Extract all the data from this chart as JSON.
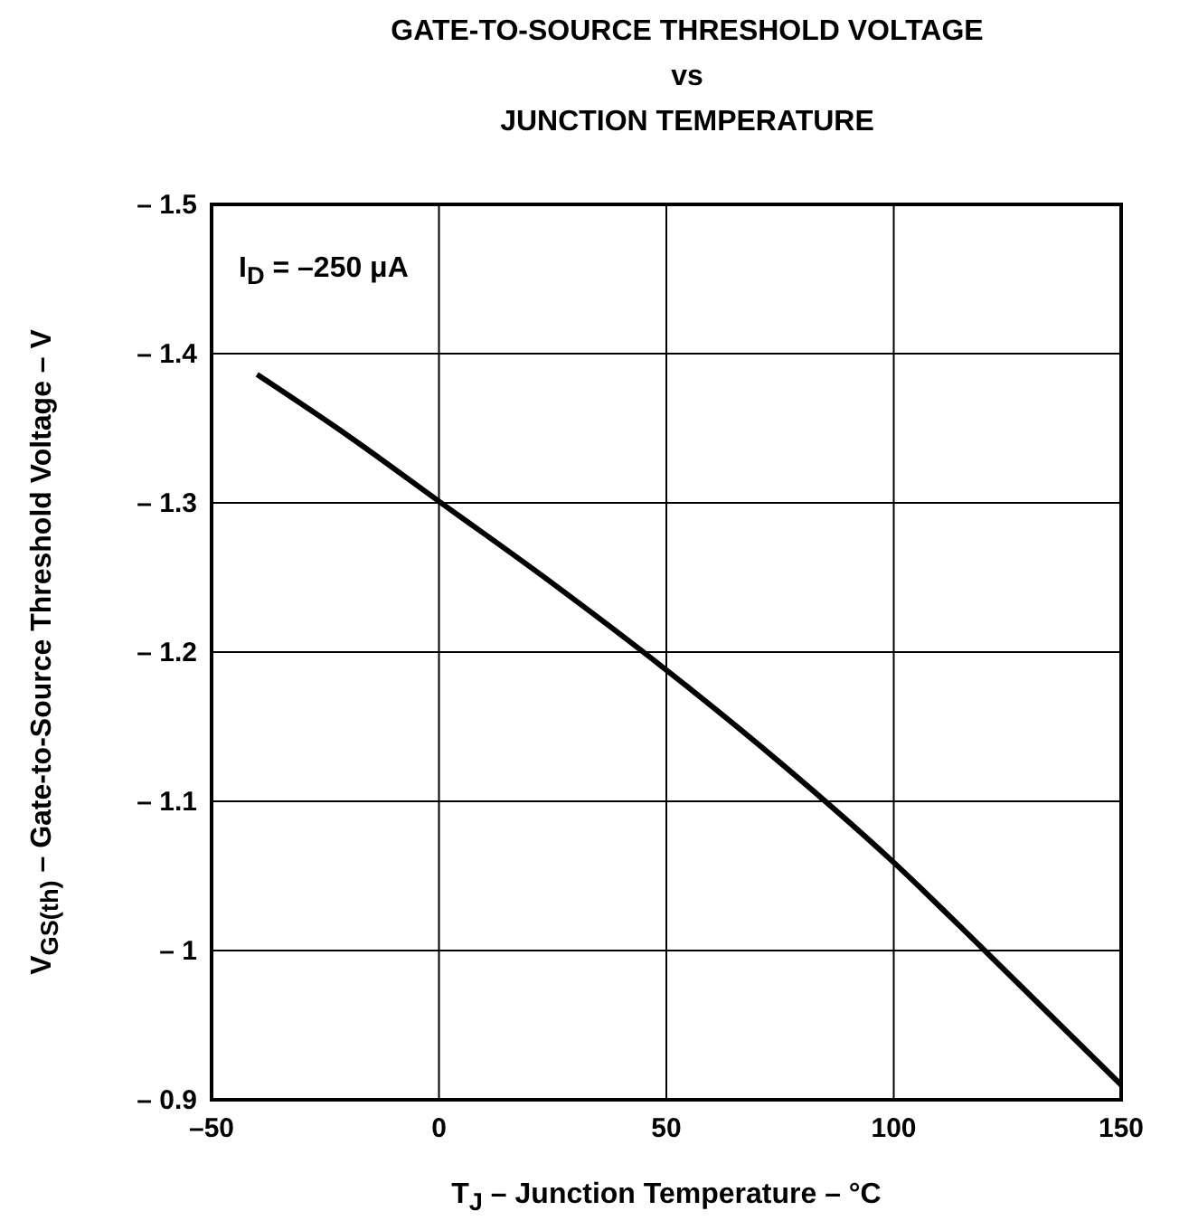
{
  "chart_data": {
    "type": "line",
    "title": "GATE-TO-SOURCE THRESHOLD VOLTAGE\nvs\nJUNCTION TEMPERATURE",
    "xlabel": "T$_{J}$ – Junction Temperature – °C",
    "ylabel": "V$_{GS(th)}$ – Gate-to-Source Threshold Voltage – V",
    "annotations": [
      "I$_{D}$ = –250 μA"
    ],
    "x": [
      -40,
      -20,
      0,
      25,
      50,
      75,
      100,
      120,
      150
    ],
    "series": [
      {
        "color": "#000000",
        "values": [
          -1.386,
          -1.345,
          -1.301,
          -1.246,
          -1.188,
          -1.126,
          -1.059,
          -1.0,
          -0.91
        ]
      }
    ],
    "xlim": [
      -50,
      150
    ],
    "xticks": [
      {
        "value": -50,
        "label": "–50"
      },
      0,
      50,
      100,
      150
    ],
    "ylim": [
      -0.9,
      -1.5
    ],
    "yticks": [
      {
        "value": -1.5,
        "label": "– 1.5"
      },
      {
        "value": -1.4,
        "label": "– 1.4"
      },
      {
        "value": -1.3,
        "label": "– 1.3"
      },
      {
        "value": -1.2,
        "label": "– 1.2"
      },
      {
        "value": -1.1,
        "label": "– 1.1"
      },
      {
        "value": -1,
        "label": "– 1"
      },
      {
        "value": -0.9,
        "label": "– 0.9"
      }
    ],
    "grid": true,
    "marker": "none",
    "line_style": "solid"
  }
}
